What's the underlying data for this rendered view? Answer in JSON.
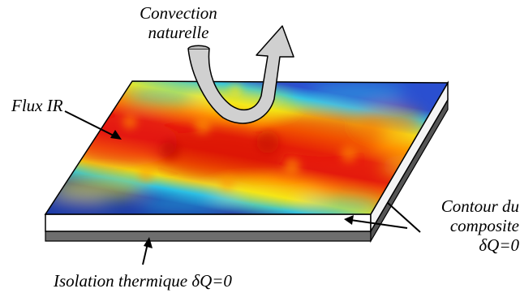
{
  "labels": {
    "convection_line1": "Convection",
    "convection_line2": "naturelle",
    "flux": "Flux IR",
    "contour_line1": "Contour du",
    "contour_line2": "composite",
    "contour_line3": "δQ=0",
    "isolation": "Isolation thermique δQ=0"
  },
  "colors": {
    "heat_hot": "#e41a0c",
    "heat_warm": "#ff8c00",
    "heat_mid": "#f5e614",
    "heat_cool": "#22c4e4",
    "heat_cold": "#1a3ba8",
    "insulation": "#7a7a7a",
    "convection_arrow_fill": "#d0d0d0",
    "arrow": "#000000"
  },
  "icons": {
    "convection": "curved-up-arrow-icon"
  }
}
